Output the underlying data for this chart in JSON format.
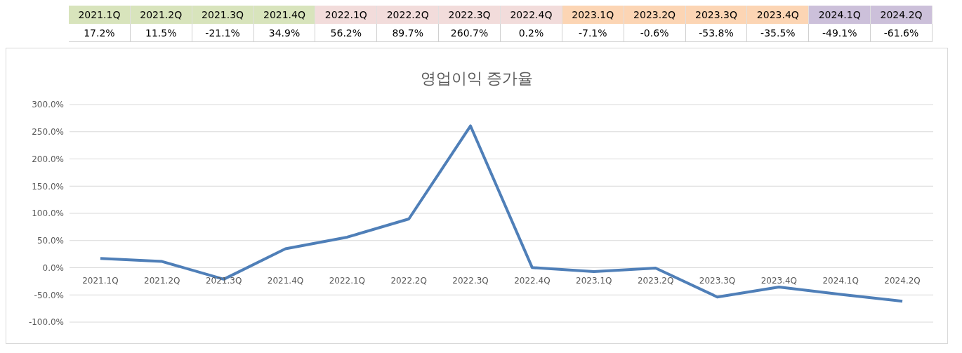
{
  "chart_data": {
    "type": "line",
    "title": "영업이익 증가율",
    "categories": [
      "2021.1Q",
      "2021.2Q",
      "2021.3Q",
      "2021.4Q",
      "2022.1Q",
      "2022.2Q",
      "2022.3Q",
      "2022.4Q",
      "2023.1Q",
      "2023.2Q",
      "2023.3Q",
      "2023.4Q",
      "2024.1Q",
      "2024.2Q"
    ],
    "series": [
      {
        "color": "#4f7fb8",
        "values": [
          17.2,
          11.5,
          -21.1,
          34.9,
          56.2,
          89.7,
          260.7,
          0.2,
          -7.1,
          -0.6,
          -53.8,
          -35.5,
          -49.1,
          -61.6
        ],
        "value_labels": [
          "17.2%",
          "11.5%",
          "-21.1%",
          "34.9%",
          "56.2%",
          "89.7%",
          "260.7%",
          "0.2%",
          "-7.1%",
          "-0.6%",
          "-53.8%",
          "-35.5%",
          "-49.1%",
          "-61.6%"
        ]
      }
    ],
    "ylim": [
      -100,
      300
    ],
    "yticks": [
      {
        "value": -100,
        "label": "-100.0%"
      },
      {
        "value": -50,
        "label": "-50.0%"
      },
      {
        "value": 0,
        "label": "0.0%"
      },
      {
        "value": 50,
        "label": "50.0%"
      },
      {
        "value": 100,
        "label": "100.0%"
      },
      {
        "value": 150,
        "label": "150.0%"
      },
      {
        "value": 200,
        "label": "200.0%"
      },
      {
        "value": 250,
        "label": "250.0%"
      },
      {
        "value": 300,
        "label": "300.0%"
      }
    ],
    "grid": "y",
    "legend": false,
    "marker": "none",
    "line_style": "solid"
  }
}
